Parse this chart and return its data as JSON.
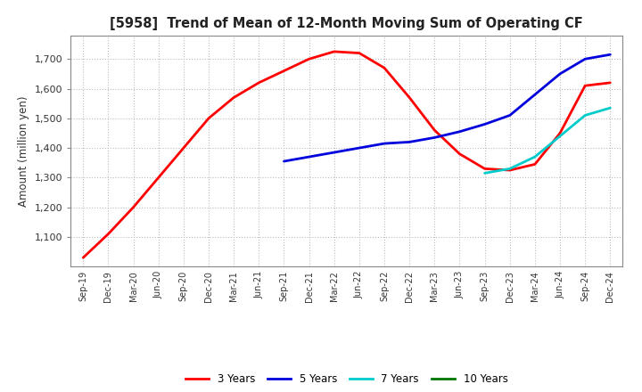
{
  "title": "[5958]  Trend of Mean of 12-Month Moving Sum of Operating CF",
  "ylabel": "Amount (million yen)",
  "ylim": [
    1000,
    1780
  ],
  "yticks": [
    1100,
    1200,
    1300,
    1400,
    1500,
    1600,
    1700
  ],
  "background_color": "#ffffff",
  "grid_color": "#aaaaaa",
  "x_labels": [
    "Sep-19",
    "Dec-19",
    "Mar-20",
    "Jun-20",
    "Sep-20",
    "Dec-20",
    "Mar-21",
    "Jun-21",
    "Sep-21",
    "Dec-21",
    "Mar-22",
    "Jun-22",
    "Sep-22",
    "Dec-22",
    "Mar-23",
    "Jun-23",
    "Sep-23",
    "Dec-23",
    "Mar-24",
    "Jun-24",
    "Sep-24",
    "Dec-24"
  ],
  "series": {
    "3 Years": {
      "color": "#ff0000",
      "linewidth": 2.0,
      "points": [
        [
          0,
          1030
        ],
        [
          1,
          1110
        ],
        [
          2,
          1200
        ],
        [
          3,
          1300
        ],
        [
          4,
          1400
        ],
        [
          5,
          1500
        ],
        [
          6,
          1570
        ],
        [
          7,
          1620
        ],
        [
          8,
          1660
        ],
        [
          9,
          1700
        ],
        [
          10,
          1725
        ],
        [
          11,
          1720
        ],
        [
          12,
          1670
        ],
        [
          13,
          1570
        ],
        [
          14,
          1460
        ],
        [
          15,
          1380
        ],
        [
          16,
          1330
        ],
        [
          17,
          1325
        ],
        [
          18,
          1345
        ],
        [
          19,
          1450
        ],
        [
          20,
          1610
        ],
        [
          21,
          1620
        ]
      ]
    },
    "5 Years": {
      "color": "#0000dd",
      "linewidth": 2.0,
      "points": [
        [
          8,
          1355
        ],
        [
          9,
          1370
        ],
        [
          10,
          1385
        ],
        [
          11,
          1400
        ],
        [
          12,
          1415
        ],
        [
          13,
          1420
        ],
        [
          14,
          1435
        ],
        [
          15,
          1455
        ],
        [
          16,
          1480
        ],
        [
          17,
          1510
        ],
        [
          18,
          1580
        ],
        [
          19,
          1650
        ],
        [
          20,
          1700
        ],
        [
          21,
          1715
        ]
      ]
    },
    "7 Years": {
      "color": "#00cccc",
      "linewidth": 2.0,
      "points": [
        [
          16,
          1315
        ],
        [
          17,
          1330
        ],
        [
          18,
          1370
        ],
        [
          19,
          1440
        ],
        [
          20,
          1510
        ],
        [
          21,
          1535
        ]
      ]
    },
    "10 Years": {
      "color": "#007700",
      "linewidth": 2.0,
      "points": [
        [
          21,
          1535
        ]
      ]
    }
  },
  "legend_labels": [
    "3 Years",
    "5 Years",
    "7 Years",
    "10 Years"
  ],
  "legend_colors": [
    "#ff0000",
    "#0000dd",
    "#00cccc",
    "#007700"
  ]
}
